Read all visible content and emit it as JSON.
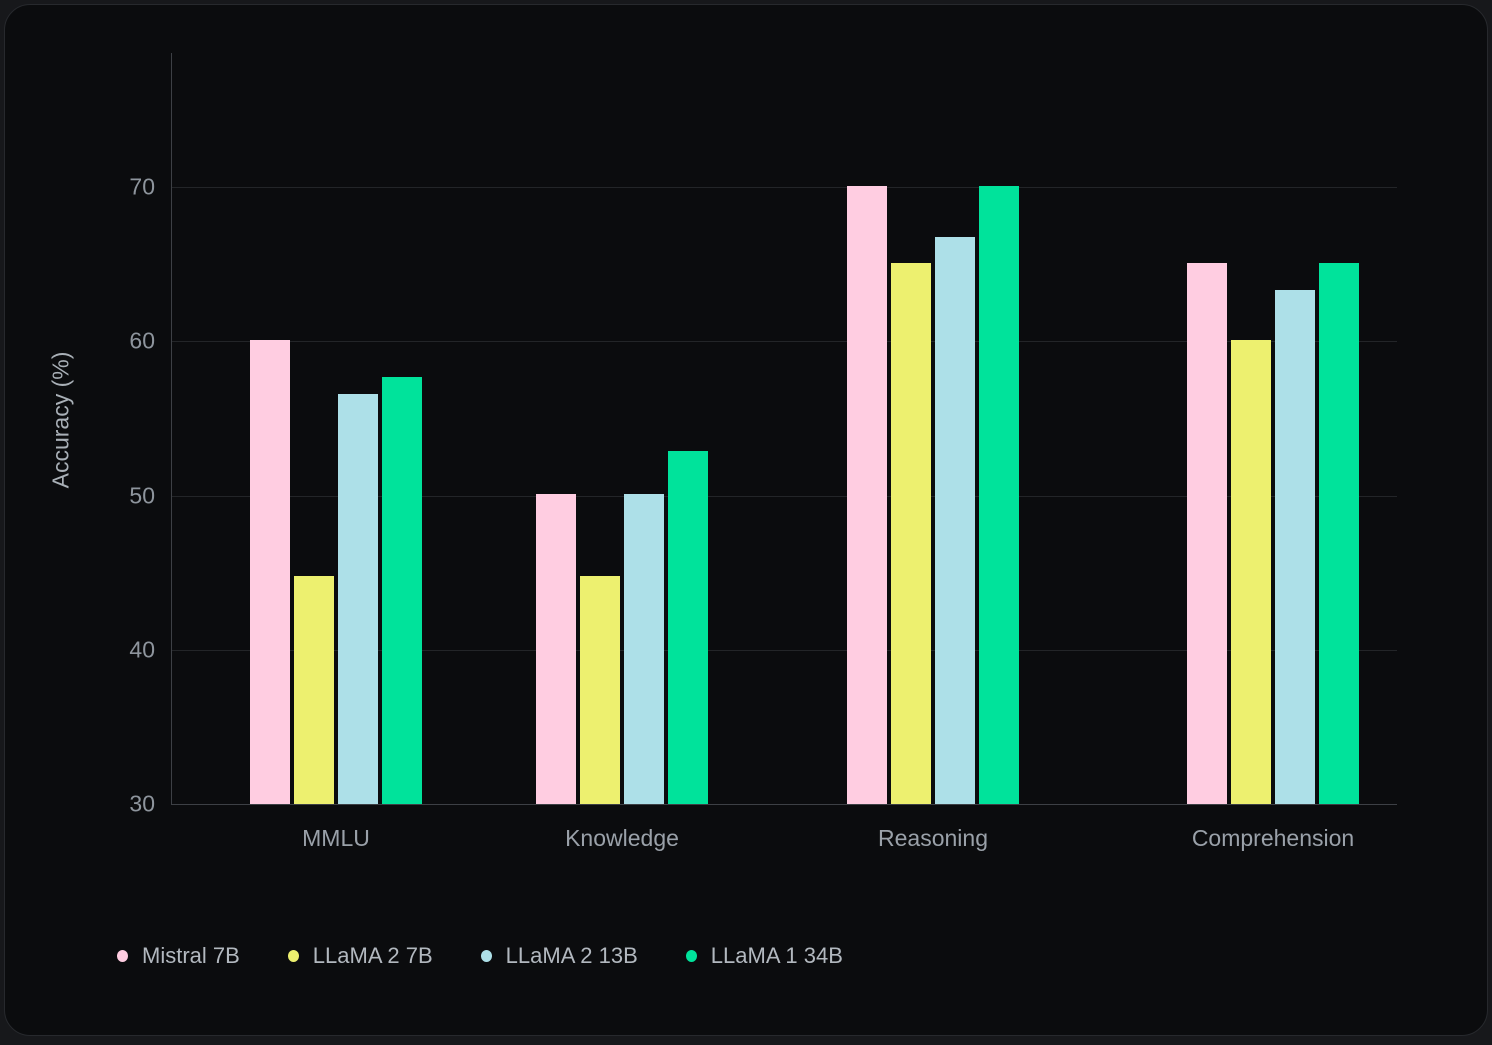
{
  "chart_data": {
    "type": "bar",
    "categories": [
      "MMLU",
      "Knowledge",
      "Reasoning",
      "Comprehension"
    ],
    "series": [
      {
        "name": "Mistral 7B",
        "color": "#FFCDE1",
        "values": [
          60.1,
          50.1,
          70.1,
          65.1
        ]
      },
      {
        "name": "LLaMA 2 7B",
        "color": "#EDF06F",
        "values": [
          44.8,
          44.8,
          65.1,
          60.1
        ]
      },
      {
        "name": "LLaMA 2 13B",
        "color": "#ADE0E8",
        "values": [
          56.6,
          50.1,
          66.8,
          63.3
        ]
      },
      {
        "name": "LLaMA 1 34B",
        "color": "#00E39B",
        "values": [
          57.7,
          52.9,
          70.1,
          65.1
        ]
      }
    ],
    "title": "",
    "xlabel": "",
    "ylabel": "Accuracy (%)",
    "yticks": [
      30,
      40,
      50,
      60,
      70
    ],
    "ylim": [
      30,
      78.7
    ],
    "grid": "horizontal",
    "legend_position": "bottom-left",
    "background": "#0b0c0e"
  }
}
